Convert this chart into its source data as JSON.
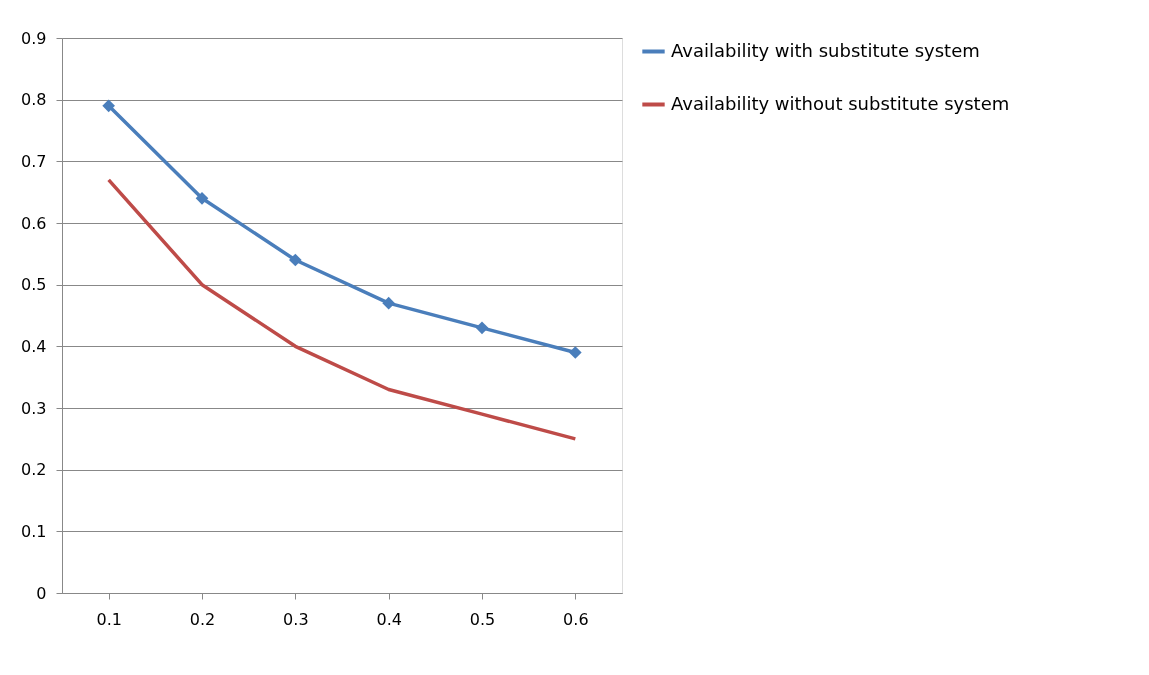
{
  "chart_data": {
    "type": "line",
    "categories": [
      "0.1",
      "0.2",
      "0.3",
      "0.4",
      "0.5",
      "0.6"
    ],
    "series": [
      {
        "name": "Availability with substitute system",
        "color": "#4a7ebb",
        "marker": "diamond",
        "values": [
          0.79,
          0.64,
          0.54,
          0.47,
          0.43,
          0.39
        ]
      },
      {
        "name": "Availability without substitute system",
        "color": "#be4b48",
        "marker": "none",
        "values": [
          0.67,
          0.5,
          0.4,
          0.33,
          0.29,
          0.25
        ]
      }
    ],
    "ylim": [
      0,
      0.9
    ],
    "yticks": [
      0,
      0.1,
      0.2,
      0.3,
      0.4,
      0.5,
      0.6,
      0.7,
      0.8,
      0.9
    ],
    "grid": "y",
    "legend": "right",
    "line_style": "solid"
  }
}
